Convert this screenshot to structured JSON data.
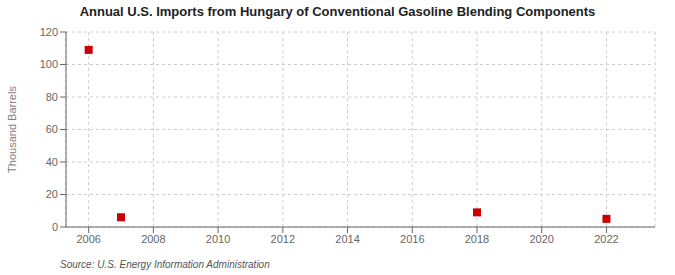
{
  "chart_data": {
    "type": "scatter",
    "title": "Annual U.S. Imports from Hungary of Conventional Gasoline Blending Components",
    "ylabel": "Thousand Barrels",
    "annotation": "Source: U.S. Energy Information Administration",
    "x": [
      2006,
      2007,
      2018,
      2022
    ],
    "values": [
      109,
      6,
      9,
      5
    ],
    "color": "#cc0000",
    "marker": "square",
    "xlim": [
      2005.3,
      2023.5
    ],
    "xticks": [
      2006,
      2008,
      2010,
      2012,
      2014,
      2016,
      2018,
      2020,
      2022
    ],
    "ylim": [
      0,
      120
    ],
    "yticks": [
      0,
      20,
      40,
      60,
      80,
      100,
      120
    ],
    "grid": true
  }
}
